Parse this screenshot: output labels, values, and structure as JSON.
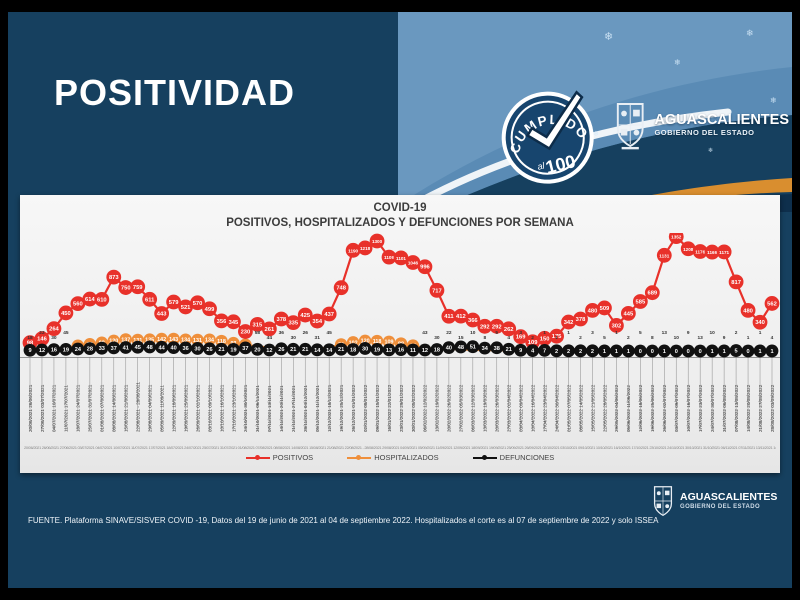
{
  "slide": {
    "title": "POSITIVIDAD"
  },
  "badge": {
    "word": "CUMPLIDO",
    "small": "al",
    "number": "100",
    "check_icon": "✓"
  },
  "state_logo": {
    "name": "AGUASCALIENTES",
    "subtitle": "GOBIERNO DEL ESTADO"
  },
  "footer_logo": {
    "name": "AGUASCALIENTES",
    "subtitle": "GOBIERNO DEL ESTADO"
  },
  "footer": {
    "source": "FUENTE. Plataforma SINAVE/SISVER COVID -19, Datos del 19 de junio de 2021 al 04 de septiembre 2022.  Hospitalizados el corte es al 07 de septiembre de 2022 y solo ISSEA"
  },
  "chart_data": {
    "type": "line",
    "title": "COVID-19",
    "subtitle": "POSITIVOS, HOSPITALIZADOS Y DEFUNCIONES POR SEMANA",
    "ylim": [
      0,
      1400
    ],
    "grid": false,
    "legend_position": "bottom",
    "categories": [
      "20/06/2021 26/06/2021",
      "27/06/2021 03/07/2021",
      "04/07/2021 10/07/2021",
      "11/07/2021 17/07/2021",
      "18/07/2021 24/07/2021",
      "25/07/2021 31/07/2021",
      "01/08/2021 07/08/2021",
      "08/08/2021 14/08/2021",
      "15/08/2021 21/08/2021",
      "22/08/2021 - 28/08/2021",
      "29/08/2021 04/09/2021",
      "05/09/2021 11/09/2021",
      "12/09/2021 18/09/2021",
      "19/09/2021 25/09/2021",
      "26/09/2021 02/10/2021",
      "03/10/2021 09/10/2021",
      "10/10/2021 16/10/2021",
      "17/10/2021 23/10/2021",
      "24/10/2021 30/10/2021",
      "31/10/2021 06/11/2021",
      "07/11/2021 13/11/2021",
      "14/11/2021 20/11/2021",
      "21/11/2021 27/11/2021",
      "28/11/2021 04/12/2021",
      "05/12/2021 11/12/2021",
      "12/12/2021 18/12/2021",
      "19/12/2021 25/12/2021",
      "26/12/2021 01/01/2022",
      "02/01/2022 08/01/2022",
      "09/01/2022 15/01/2022",
      "16/01/2022 22/01/2022",
      "23/01/2022 29/01/2022",
      "30/01/2022 05/02/2022",
      "06/02/2022 12/02/2022",
      "13/02/2022 19/02/2022",
      "20/02/2022 26/02/2022",
      "27/02/2022 05/03/2022",
      "06/03/2022 12/03/2022",
      "13/03/2022 19/03/2022",
      "20/03/2022 26/03/2022",
      "27/03/2022 02/04/2022",
      "03/04/2022 09/04/2022",
      "10/04/2022 16/04/2022",
      "17/04/2022 23/04/2022",
      "24/04/2022 30/04/2022",
      "01/05/2022 07/05/2022",
      "08/05/2022 14/05/2022",
      "15/05/2022 21/05/2022",
      "22/05/2022 28/05/2022",
      "29/05/2022 04/06/2022",
      "05/06/2022 11/06/2022",
      "12/06/2022 18/06/2022",
      "19/06/2022 25/06/2022",
      "26/06/2022 02/07/2022",
      "03/07/2022 09/07/2022",
      "10/07/2022 16/07/2022",
      "17/07/2022 23/07/2022",
      "24/07/2022 30/07/2022",
      "31/07/2022 06/08/2022",
      "07/08/2022 13/08/2022",
      "14/08/2022 20/08/2022",
      "21/08/2022 27/08/2022",
      "28/08/2022 03/09/2022"
    ],
    "series": [
      {
        "name": "POSITIVOS",
        "color": "#e8312a",
        "values": [
          98,
          146,
          264,
          450,
          560,
          614,
          610,
          873,
          750,
          759,
          611,
          443,
          579,
          521,
          570,
          499,
          356,
          345,
          230,
          315,
          261,
          378,
          335,
          425,
          354,
          437,
          748,
          1190,
          1218,
          1300,
          1109,
          1101,
          1046,
          996,
          717,
          411,
          412,
          366,
          292,
          292,
          262,
          169,
          109,
          150,
          175,
          342,
          378,
          480,
          509,
          302,
          445,
          585,
          689,
          1131,
          1352,
          1208,
          1176,
          1169,
          1171,
          817,
          480,
          340,
          562
        ]
      },
      {
        "name": "HOSPITALIZADOS",
        "color": "#ef8f3b",
        "values": [
          18,
          22,
          30,
          45,
          62,
          80,
          98,
          120,
          137,
          131,
          135,
          142,
          143,
          134,
          131,
          134,
          118,
          93,
          75,
          58,
          44,
          36,
          30,
          26,
          31,
          45,
          78,
          102,
          120,
          118,
          109,
          88,
          64,
          43,
          30,
          22,
          15,
          10,
          8,
          5,
          4,
          3,
          2,
          1,
          1,
          1,
          2,
          3,
          5,
          1,
          2,
          5,
          8,
          13,
          10,
          9,
          13,
          10,
          9,
          2,
          1,
          1,
          4
        ]
      },
      {
        "name": "DEFUNCIONES",
        "color": "#111111",
        "values": [
          9,
          12,
          16,
          19,
          24,
          28,
          33,
          37,
          41,
          45,
          48,
          44,
          40,
          36,
          30,
          26,
          21,
          19,
          37,
          20,
          12,
          26,
          21,
          21,
          14,
          14,
          21,
          18,
          30,
          19,
          13,
          16,
          11,
          12,
          18,
          40,
          48,
          51,
          34,
          38,
          21,
          9,
          4,
          7,
          2,
          2,
          2,
          2,
          1,
          1,
          1,
          0,
          0,
          1,
          0,
          0,
          0,
          1,
          1,
          5,
          0,
          1,
          1
        ]
      }
    ]
  }
}
